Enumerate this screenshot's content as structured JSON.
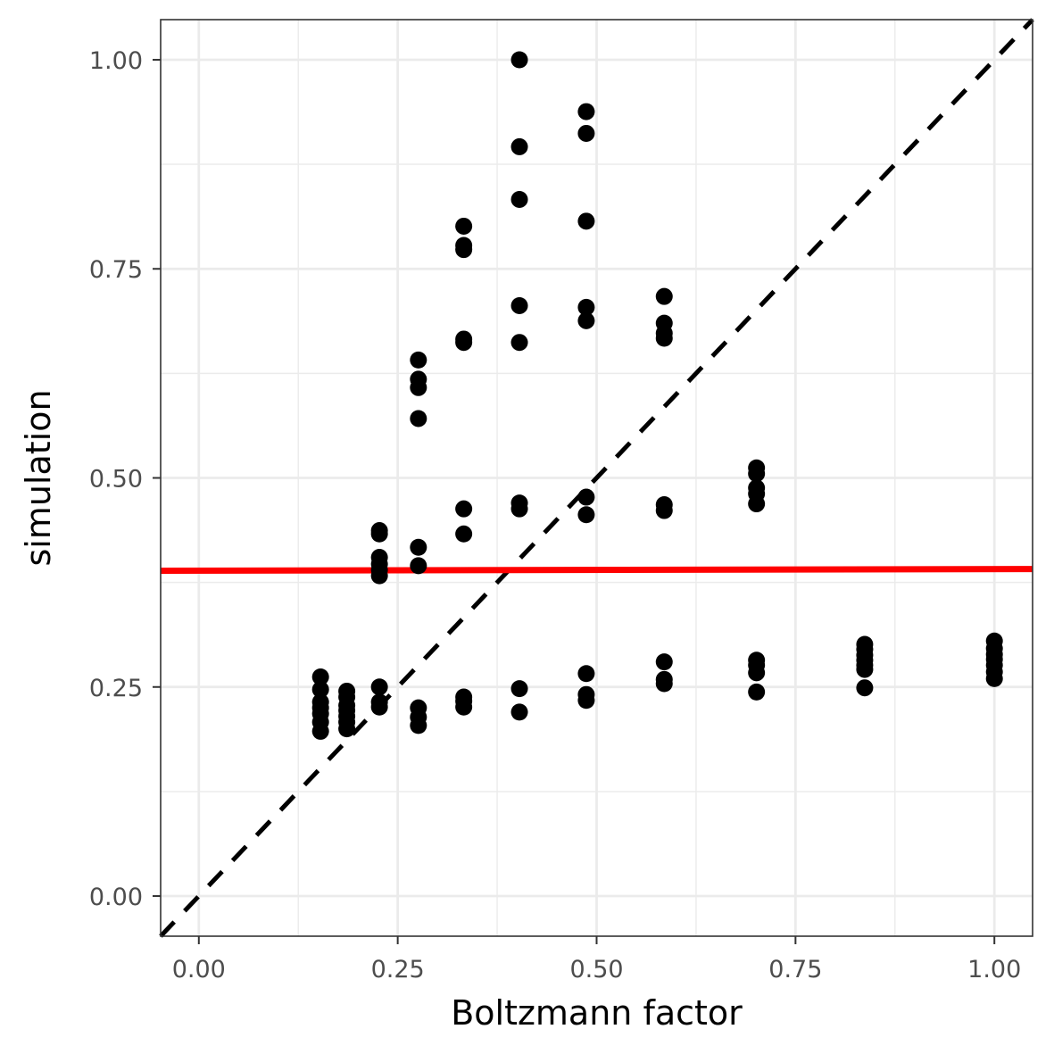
{
  "chart_data": {
    "type": "scatter",
    "title": "",
    "xlabel": "Boltzmann factor",
    "ylabel": "simulation",
    "xlim": [
      -0.048,
      1.048
    ],
    "ylim": [
      -0.048,
      1.048
    ],
    "xticks": [
      0,
      0.25,
      0.5,
      0.75,
      1
    ],
    "yticks": [
      0,
      0.25,
      0.5,
      0.75,
      1
    ],
    "xtick_labels": [
      "0.00",
      "0.25",
      "0.50",
      "0.75",
      "1.00"
    ],
    "ytick_labels": [
      "0.00",
      "0.25",
      "0.50",
      "0.75",
      "1.00"
    ],
    "grid": true,
    "theme": "bw",
    "points": [
      {
        "x": 0.153,
        "y": 0.262
      },
      {
        "x": 0.153,
        "y": 0.247
      },
      {
        "x": 0.153,
        "y": 0.232
      },
      {
        "x": 0.153,
        "y": 0.225
      },
      {
        "x": 0.153,
        "y": 0.218
      },
      {
        "x": 0.153,
        "y": 0.208
      },
      {
        "x": 0.153,
        "y": 0.197
      },
      {
        "x": 0.186,
        "y": 0.245
      },
      {
        "x": 0.186,
        "y": 0.238
      },
      {
        "x": 0.186,
        "y": 0.228
      },
      {
        "x": 0.186,
        "y": 0.222
      },
      {
        "x": 0.186,
        "y": 0.215
      },
      {
        "x": 0.186,
        "y": 0.208
      },
      {
        "x": 0.186,
        "y": 0.2
      },
      {
        "x": 0.227,
        "y": 0.437
      },
      {
        "x": 0.227,
        "y": 0.433
      },
      {
        "x": 0.227,
        "y": 0.405
      },
      {
        "x": 0.227,
        "y": 0.397
      },
      {
        "x": 0.227,
        "y": 0.39
      },
      {
        "x": 0.227,
        "y": 0.383
      },
      {
        "x": 0.227,
        "y": 0.25
      },
      {
        "x": 0.227,
        "y": 0.232
      },
      {
        "x": 0.227,
        "y": 0.226
      },
      {
        "x": 0.276,
        "y": 0.641
      },
      {
        "x": 0.276,
        "y": 0.618
      },
      {
        "x": 0.276,
        "y": 0.608
      },
      {
        "x": 0.276,
        "y": 0.571
      },
      {
        "x": 0.276,
        "y": 0.417
      },
      {
        "x": 0.276,
        "y": 0.395
      },
      {
        "x": 0.276,
        "y": 0.225
      },
      {
        "x": 0.276,
        "y": 0.214
      },
      {
        "x": 0.276,
        "y": 0.204
      },
      {
        "x": 0.333,
        "y": 0.801
      },
      {
        "x": 0.333,
        "y": 0.778
      },
      {
        "x": 0.333,
        "y": 0.773
      },
      {
        "x": 0.333,
        "y": 0.666
      },
      {
        "x": 0.333,
        "y": 0.662
      },
      {
        "x": 0.333,
        "y": 0.463
      },
      {
        "x": 0.333,
        "y": 0.433
      },
      {
        "x": 0.333,
        "y": 0.238
      },
      {
        "x": 0.333,
        "y": 0.233
      },
      {
        "x": 0.333,
        "y": 0.226
      },
      {
        "x": 0.403,
        "y": 1.0
      },
      {
        "x": 0.403,
        "y": 0.896
      },
      {
        "x": 0.403,
        "y": 0.833
      },
      {
        "x": 0.403,
        "y": 0.706
      },
      {
        "x": 0.403,
        "y": 0.662
      },
      {
        "x": 0.403,
        "y": 0.47
      },
      {
        "x": 0.403,
        "y": 0.463
      },
      {
        "x": 0.403,
        "y": 0.248
      },
      {
        "x": 0.403,
        "y": 0.22
      },
      {
        "x": 0.487,
        "y": 0.938
      },
      {
        "x": 0.487,
        "y": 0.912
      },
      {
        "x": 0.487,
        "y": 0.807
      },
      {
        "x": 0.487,
        "y": 0.704
      },
      {
        "x": 0.487,
        "y": 0.688
      },
      {
        "x": 0.487,
        "y": 0.477
      },
      {
        "x": 0.487,
        "y": 0.456
      },
      {
        "x": 0.487,
        "y": 0.266
      },
      {
        "x": 0.487,
        "y": 0.241
      },
      {
        "x": 0.487,
        "y": 0.234
      },
      {
        "x": 0.585,
        "y": 0.717
      },
      {
        "x": 0.585,
        "y": 0.685
      },
      {
        "x": 0.585,
        "y": 0.673
      },
      {
        "x": 0.585,
        "y": 0.667
      },
      {
        "x": 0.585,
        "y": 0.468
      },
      {
        "x": 0.585,
        "y": 0.461
      },
      {
        "x": 0.585,
        "y": 0.28
      },
      {
        "x": 0.585,
        "y": 0.259
      },
      {
        "x": 0.585,
        "y": 0.254
      },
      {
        "x": 0.701,
        "y": 0.512
      },
      {
        "x": 0.701,
        "y": 0.505
      },
      {
        "x": 0.701,
        "y": 0.488
      },
      {
        "x": 0.701,
        "y": 0.481
      },
      {
        "x": 0.701,
        "y": 0.469
      },
      {
        "x": 0.701,
        "y": 0.282
      },
      {
        "x": 0.701,
        "y": 0.276
      },
      {
        "x": 0.701,
        "y": 0.267
      },
      {
        "x": 0.701,
        "y": 0.244
      },
      {
        "x": 0.837,
        "y": 0.301
      },
      {
        "x": 0.837,
        "y": 0.295
      },
      {
        "x": 0.837,
        "y": 0.288
      },
      {
        "x": 0.837,
        "y": 0.282
      },
      {
        "x": 0.837,
        "y": 0.276
      },
      {
        "x": 0.837,
        "y": 0.271
      },
      {
        "x": 0.837,
        "y": 0.249
      },
      {
        "x": 1.0,
        "y": 0.305
      },
      {
        "x": 1.0,
        "y": 0.296
      },
      {
        "x": 1.0,
        "y": 0.289
      },
      {
        "x": 1.0,
        "y": 0.283
      },
      {
        "x": 1.0,
        "y": 0.276
      },
      {
        "x": 1.0,
        "y": 0.268
      },
      {
        "x": 1.0,
        "y": 0.26
      }
    ],
    "reference_line": {
      "type": "identity",
      "intercept": 0,
      "slope": 1,
      "style": "dashed",
      "color": "#000000"
    },
    "fit_line": {
      "x": [
        -0.048,
        1.048
      ],
      "y": [
        0.389,
        0.391
      ],
      "color": "#ff0000"
    },
    "colors": {
      "points": "#000000",
      "grid": "#ebebeb",
      "panel_border": "#333333",
      "tick_text": "#4d4d4d"
    }
  }
}
